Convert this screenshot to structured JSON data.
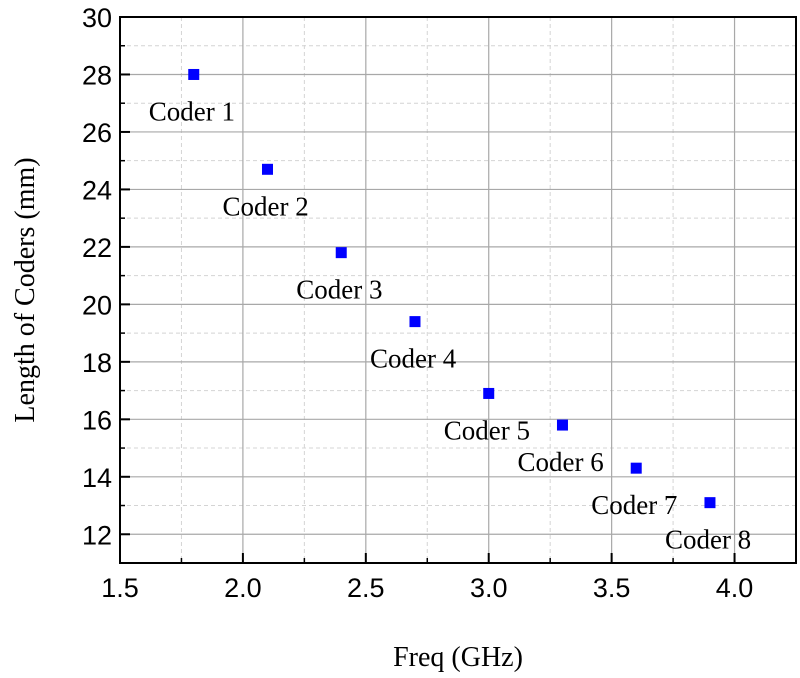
{
  "chart_data": {
    "type": "scatter",
    "xlabel": "Freq (GHz)",
    "ylabel": "Length of Coders (mm)",
    "xlim": [
      1.5,
      4.25
    ],
    "ylim": [
      11,
      30
    ],
    "x_ticks": [
      "1.5",
      "2.0",
      "2.5",
      "3.0",
      "3.5",
      "4.0"
    ],
    "y_ticks": [
      "12",
      "14",
      "16",
      "18",
      "20",
      "22",
      "24",
      "26",
      "28",
      "30"
    ],
    "grid": true,
    "marker": "square",
    "marker_color": "#0000ff",
    "series": [
      {
        "name": "Coders",
        "points": [
          {
            "x": 1.8,
            "y": 28.0,
            "label": "Coder 1"
          },
          {
            "x": 2.1,
            "y": 24.7,
            "label": "Coder 2"
          },
          {
            "x": 2.4,
            "y": 21.8,
            "label": "Coder 3"
          },
          {
            "x": 2.7,
            "y": 19.4,
            "label": "Coder 4"
          },
          {
            "x": 3.0,
            "y": 16.9,
            "label": "Coder 5"
          },
          {
            "x": 3.3,
            "y": 15.8,
            "label": "Coder 6"
          },
          {
            "x": 3.6,
            "y": 14.3,
            "label": "Coder 7"
          },
          {
            "x": 3.9,
            "y": 13.1,
            "label": "Coder 8"
          }
        ]
      }
    ]
  }
}
